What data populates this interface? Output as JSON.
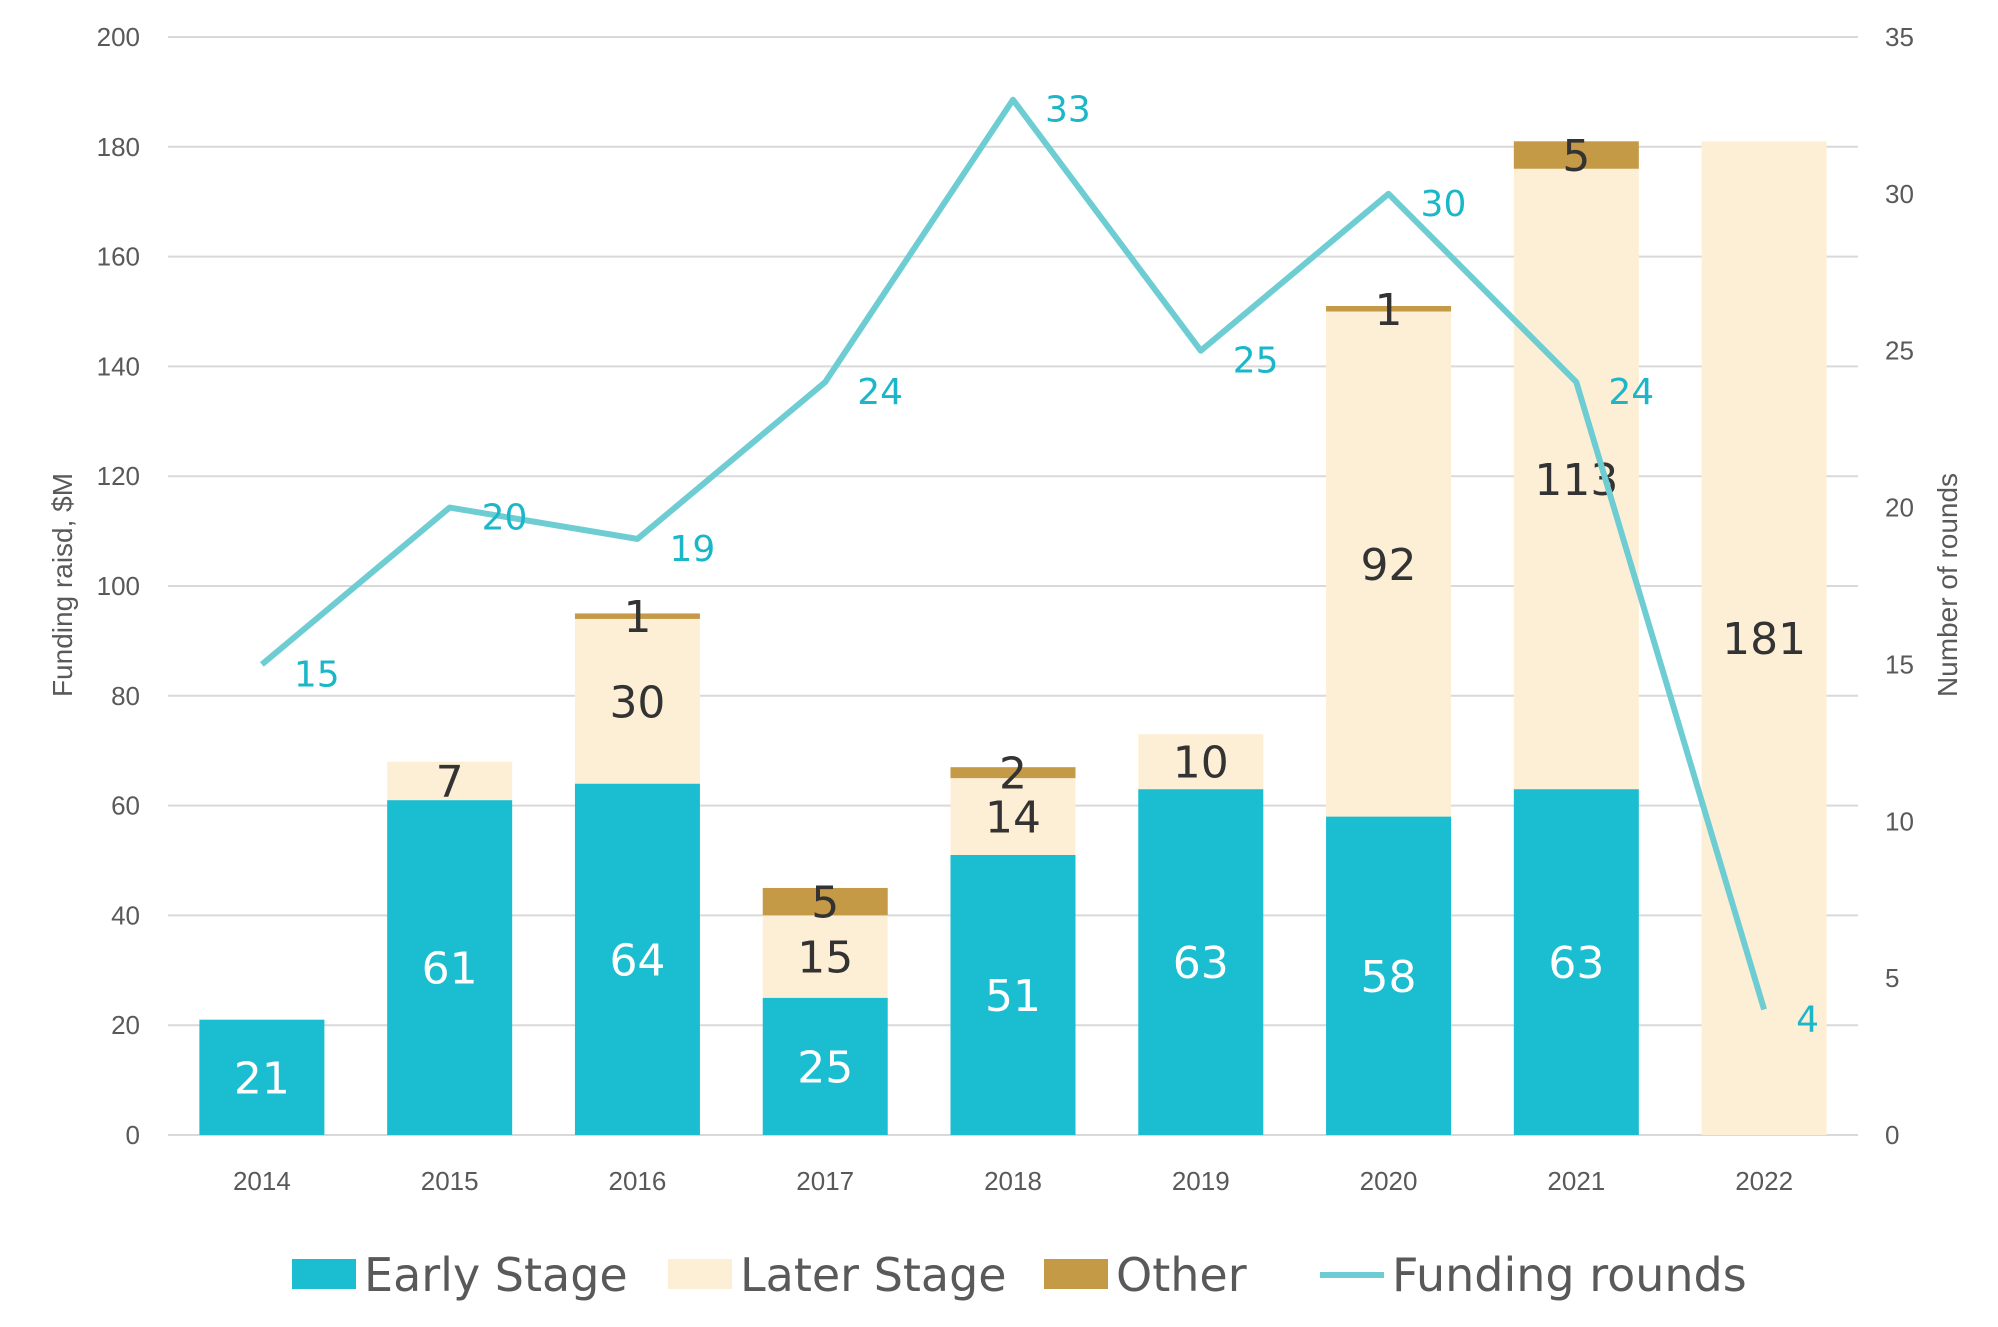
{
  "chart_data": {
    "type": "bar",
    "stacked": true,
    "categories": [
      "2014",
      "2015",
      "2016",
      "2017",
      "2018",
      "2019",
      "2020",
      "2021",
      "2022"
    ],
    "series": [
      {
        "name": "Early Stage",
        "kind": "bar",
        "axis": "left",
        "color": "#1bbdd0",
        "values": [
          21,
          61,
          64,
          25,
          51,
          63,
          58,
          63,
          0
        ],
        "labels": [
          "21",
          "61",
          "64",
          "25",
          "51",
          "63",
          "58",
          "63",
          ""
        ]
      },
      {
        "name": "Later Stage",
        "kind": "bar",
        "axis": "left",
        "color": "#fdefd5",
        "values": [
          0,
          7,
          30,
          15,
          14,
          10,
          92,
          113,
          181
        ],
        "labels": [
          "",
          "7",
          "30",
          "15",
          "14",
          "10",
          "92",
          "113",
          "181"
        ]
      },
      {
        "name": "Other",
        "kind": "bar",
        "axis": "left",
        "color": "#c49a47",
        "values": [
          0,
          0,
          1,
          5,
          2,
          0,
          1,
          5,
          0
        ],
        "labels": [
          "",
          "",
          "1",
          "5",
          "2",
          "",
          "1",
          "5",
          ""
        ]
      },
      {
        "name": "Funding rounds",
        "kind": "line",
        "axis": "right",
        "color": "#6ecdd3",
        "values": [
          15,
          20,
          19,
          24,
          33,
          25,
          30,
          24,
          4
        ],
        "labels": [
          "15",
          "20",
          "19",
          "24",
          "33",
          "25",
          "30",
          "24",
          "4"
        ]
      }
    ],
    "ylabel": "Funding raisd, $M",
    "y2label": "Number of rounds",
    "xlabel": "",
    "ylim": [
      0,
      200
    ],
    "y2lim": [
      0,
      35
    ],
    "yticks": [
      "0",
      "20",
      "40",
      "60",
      "80",
      "100",
      "120",
      "140",
      "160",
      "180",
      "200"
    ],
    "y2ticks": [
      "0",
      "5",
      "10",
      "15",
      "20",
      "25",
      "30",
      "35"
    ],
    "grid": true,
    "legend_position": "bottom",
    "line_label_color": "#1bb7c9",
    "grid_color": "#d9d9d9"
  }
}
